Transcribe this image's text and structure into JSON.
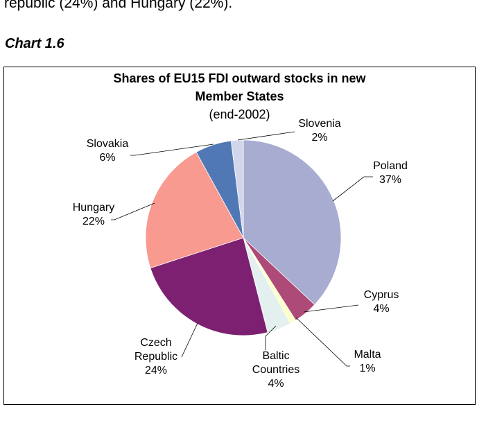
{
  "document": {
    "top_text": "republic (24%) and Hungary (22%).",
    "chart_caption": "Chart 1.6"
  },
  "chart_data": {
    "type": "pie",
    "title": "Shares of EU15 FDI outward stocks in new Member States",
    "title_lines": [
      "Shares of EU15 FDI outward stocks in new",
      "Member States"
    ],
    "subtitle": "(end-2002)",
    "slices": [
      {
        "name": "Poland",
        "value": 37,
        "value_label": "37%",
        "color": "#a8acd0",
        "label_lines": [
          "Poland"
        ]
      },
      {
        "name": "Cyprus",
        "value": 4,
        "value_label": "4%",
        "color": "#ad4a78",
        "label_lines": [
          "Cyprus"
        ]
      },
      {
        "name": "Malta",
        "value": 1,
        "value_label": "1%",
        "color": "#ffffc8",
        "label_lines": [
          "Malta"
        ]
      },
      {
        "name": "Baltic Countries",
        "value": 4,
        "value_label": "4%",
        "color": "#e4f0f0",
        "label_lines": [
          "Baltic",
          "Countries"
        ]
      },
      {
        "name": "Czech Republic",
        "value": 24,
        "value_label": "24%",
        "color": "#7e2072",
        "label_lines": [
          "Czech",
          "Republic"
        ]
      },
      {
        "name": "Hungary",
        "value": 22,
        "value_label": "22%",
        "color": "#f89a90",
        "label_lines": [
          "Hungary"
        ]
      },
      {
        "name": "Slovakia",
        "value": 6,
        "value_label": "6%",
        "color": "#5078b4",
        "label_lines": [
          "Slovakia"
        ]
      },
      {
        "name": "Slovenia",
        "value": 2,
        "value_label": "2%",
        "color": "#d2d6ea",
        "label_lines": [
          "Slovenia"
        ]
      }
    ]
  }
}
